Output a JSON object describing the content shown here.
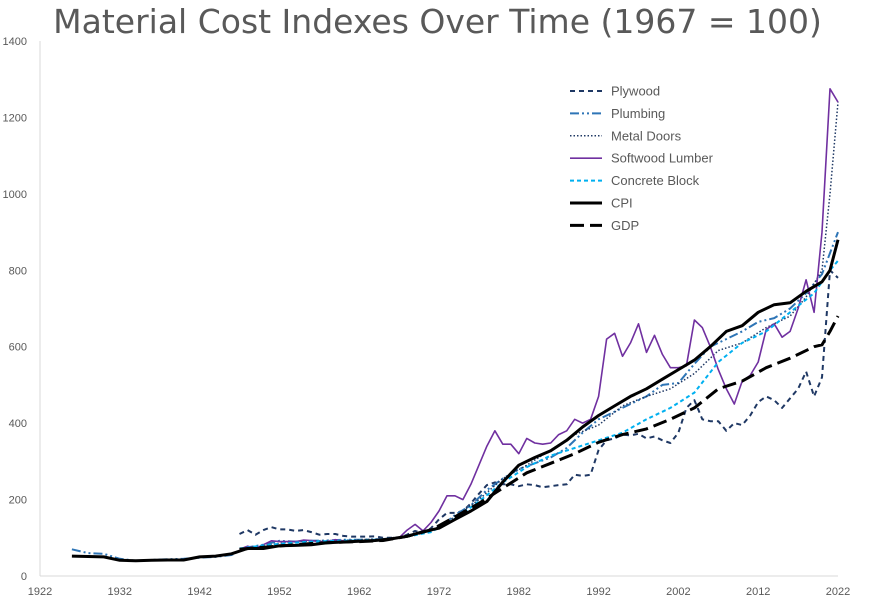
{
  "chart_data": {
    "type": "line",
    "title": "Material Cost Indexes Over Time (1967 = 100)",
    "xlabel": "",
    "ylabel": "",
    "xlim": [
      1922,
      2022
    ],
    "ylim": [
      0,
      1400
    ],
    "x_ticks": [
      "1922",
      "1932",
      "1942",
      "1952",
      "1962",
      "1972",
      "1982",
      "1992",
      "2002",
      "2012",
      "2022"
    ],
    "y_ticks": [
      "0",
      "200",
      "400",
      "600",
      "800",
      "1000",
      "1200",
      "1400"
    ],
    "grid": false,
    "legend_position": "top-right",
    "series": [
      {
        "name": "Plywood",
        "color": "#1f3864",
        "x": [
          1947,
          1948,
          1949,
          1950,
          1951,
          1952,
          1953,
          1954,
          1955,
          1956,
          1957,
          1958,
          1959,
          1960,
          1961,
          1962,
          1963,
          1964,
          1965,
          1966,
          1967,
          1968,
          1969,
          1970,
          1971,
          1972,
          1973,
          1974,
          1975,
          1976,
          1977,
          1978,
          1979,
          1980,
          1981,
          1982,
          1983,
          1984,
          1985,
          1986,
          1987,
          1988,
          1989,
          1990,
          1991,
          1992,
          1993,
          1994,
          1995,
          1996,
          1997,
          1998,
          1999,
          2000,
          2001,
          2002,
          2003,
          2004,
          2005,
          2006,
          2007,
          2008,
          2009,
          2010,
          2011,
          2012,
          2013,
          2014,
          2015,
          2016,
          2017,
          2018,
          2019,
          2020,
          2021,
          2022
        ],
        "values": [
          110,
          120,
          108,
          120,
          128,
          122,
          122,
          118,
          120,
          115,
          108,
          110,
          110,
          105,
          103,
          103,
          103,
          104,
          100,
          100,
          100,
          108,
          118,
          112,
          125,
          148,
          165,
          165,
          170,
          190,
          215,
          238,
          245,
          240,
          240,
          235,
          240,
          238,
          232,
          235,
          238,
          240,
          265,
          262,
          265,
          330,
          355,
          360,
          370,
          368,
          372,
          360,
          365,
          355,
          348,
          375,
          440,
          460,
          410,
          405,
          405,
          380,
          400,
          395,
          420,
          455,
          470,
          460,
          440,
          465,
          490,
          535,
          470,
          520,
          800,
          780
        ]
      },
      {
        "name": "Plumbing",
        "color": "#2e75b6",
        "x": [
          1926,
          1928,
          1930,
          1932,
          1934,
          1936,
          1938,
          1940,
          1942,
          1944,
          1946,
          1948,
          1950,
          1952,
          1954,
          1956,
          1958,
          1960,
          1962,
          1964,
          1966,
          1968,
          1970,
          1972,
          1974,
          1976,
          1978,
          1980,
          1982,
          1984,
          1986,
          1988,
          1990,
          1992,
          1994,
          1996,
          1998,
          2000,
          2002,
          2004,
          2006,
          2008,
          2010,
          2012,
          2014,
          2016,
          2018,
          2020,
          2022
        ],
        "values": [
          70,
          60,
          58,
          45,
          40,
          42,
          44,
          45,
          48,
          50,
          55,
          75,
          82,
          92,
          90,
          92,
          93,
          95,
          95,
          96,
          98,
          104,
          115,
          125,
          160,
          185,
          225,
          255,
          280,
          295,
          310,
          335,
          375,
          410,
          430,
          450,
          470,
          500,
          505,
          555,
          600,
          620,
          640,
          665,
          675,
          700,
          740,
          790,
          900
        ]
      },
      {
        "name": "Metal Doors",
        "color": "#1f3864",
        "x": [
          1947,
          1950,
          1953,
          1956,
          1959,
          1962,
          1965,
          1968,
          1971,
          1974,
          1977,
          1980,
          1983,
          1986,
          1989,
          1992,
          1995,
          1998,
          2001,
          2004,
          2007,
          2010,
          2013,
          2016,
          2018,
          2020,
          2021,
          2022
        ],
        "values": [
          65,
          80,
          88,
          92,
          93,
          95,
          97,
          105,
          118,
          155,
          200,
          255,
          290,
          330,
          370,
          395,
          445,
          470,
          490,
          530,
          590,
          610,
          650,
          680,
          730,
          800,
          1000,
          1240
        ]
      },
      {
        "name": "Softwood Lumber",
        "color": "#7030a0",
        "x": [
          1947,
          1948,
          1949,
          1950,
          1951,
          1952,
          1953,
          1954,
          1955,
          1956,
          1957,
          1958,
          1959,
          1960,
          1961,
          1962,
          1963,
          1964,
          1965,
          1966,
          1967,
          1968,
          1969,
          1970,
          1971,
          1972,
          1973,
          1974,
          1975,
          1976,
          1977,
          1978,
          1979,
          1980,
          1981,
          1982,
          1983,
          1984,
          1985,
          1986,
          1987,
          1988,
          1989,
          1990,
          1991,
          1992,
          1993,
          1994,
          1995,
          1996,
          1997,
          1998,
          1999,
          2000,
          2001,
          2002,
          2003,
          2004,
          2005,
          2006,
          2007,
          2008,
          2009,
          2010,
          2011,
          2012,
          2013,
          2014,
          2015,
          2016,
          2017,
          2018,
          2019,
          2020,
          2021,
          2022
        ],
        "values": [
          70,
          78,
          72,
          82,
          92,
          90,
          90,
          90,
          94,
          93,
          90,
          90,
          95,
          92,
          90,
          92,
          93,
          95,
          95,
          98,
          100,
          120,
          135,
          118,
          140,
          170,
          210,
          210,
          200,
          240,
          290,
          340,
          380,
          345,
          345,
          320,
          360,
          348,
          345,
          348,
          370,
          380,
          410,
          400,
          410,
          470,
          620,
          635,
          575,
          610,
          660,
          585,
          630,
          580,
          545,
          545,
          550,
          670,
          650,
          600,
          540,
          490,
          450,
          510,
          525,
          560,
          645,
          660,
          625,
          640,
          700,
          775,
          690,
          900,
          1275,
          1240
        ]
      },
      {
        "name": "Concrete Block",
        "color": "#00b0f0",
        "x": [
          1947,
          1950,
          1953,
          1956,
          1959,
          1962,
          1965,
          1968,
          1971,
          1974,
          1977,
          1980,
          1983,
          1986,
          1989,
          1992,
          1995,
          1998,
          2001,
          2004,
          2007,
          2010,
          2013,
          2016,
          2019,
          2021,
          2022
        ],
        "values": [
          72,
          80,
          86,
          90,
          92,
          93,
          96,
          103,
          115,
          150,
          195,
          245,
          285,
          315,
          335,
          355,
          375,
          410,
          440,
          480,
          560,
          610,
          640,
          690,
          740,
          800,
          825
        ]
      },
      {
        "name": "CPI",
        "color": "#000000",
        "x": [
          1926,
          1928,
          1930,
          1932,
          1934,
          1936,
          1938,
          1940,
          1942,
          1944,
          1946,
          1948,
          1950,
          1952,
          1954,
          1956,
          1958,
          1960,
          1962,
          1964,
          1966,
          1968,
          1970,
          1972,
          1974,
          1976,
          1978,
          1980,
          1982,
          1984,
          1986,
          1988,
          1990,
          1992,
          1994,
          1996,
          1998,
          2000,
          2002,
          2004,
          2006,
          2008,
          2010,
          2012,
          2014,
          2016,
          2018,
          2020,
          2021,
          2022
        ],
        "values": [
          52,
          51,
          50,
          41,
          40,
          41,
          42,
          42,
          50,
          52,
          58,
          72,
          72,
          79,
          80,
          82,
          87,
          89,
          91,
          93,
          97,
          104,
          116,
          125,
          148,
          170,
          195,
          246,
          290,
          310,
          328,
          355,
          390,
          420,
          445,
          470,
          490,
          515,
          540,
          565,
          600,
          640,
          655,
          690,
          710,
          715,
          745,
          770,
          800,
          880
        ]
      },
      {
        "name": "GDP",
        "color": "#000000",
        "x": [
          1947,
          1950,
          1953,
          1956,
          1959,
          1962,
          1965,
          1968,
          1971,
          1974,
          1977,
          1980,
          1983,
          1986,
          1989,
          1992,
          1995,
          1998,
          2001,
          2004,
          2007,
          2010,
          2013,
          2016,
          2019,
          2020,
          2021,
          2022
        ],
        "values": [
          70,
          75,
          80,
          85,
          88,
          90,
          93,
          104,
          120,
          155,
          190,
          230,
          270,
          295,
          320,
          350,
          370,
          385,
          410,
          440,
          490,
          510,
          545,
          570,
          600,
          605,
          640,
          680
        ]
      }
    ]
  }
}
